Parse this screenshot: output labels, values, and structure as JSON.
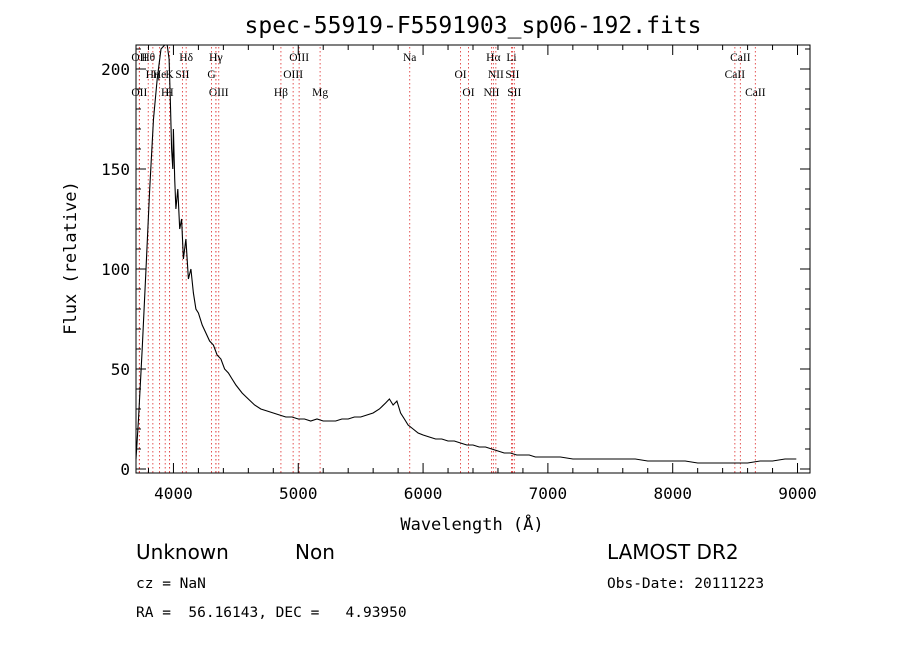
{
  "chart_data": {
    "type": "line",
    "title": "spec-55919-F5591903_sp06-192.fits",
    "xlabel": "Wavelength (Å)",
    "ylabel": "Flux (relative)",
    "xlim": [
      3700,
      9100
    ],
    "ylim": [
      -2,
      212
    ],
    "xticks": [
      4000,
      5000,
      6000,
      7000,
      8000,
      9000
    ],
    "yticks": [
      0,
      50,
      100,
      150,
      200
    ],
    "grid": false,
    "series": [
      {
        "x": [
          3700,
          3720,
          3750,
          3780,
          3810,
          3840,
          3870,
          3900,
          3930,
          3950,
          3965,
          3975,
          3985,
          3995,
          4000,
          4010,
          4020,
          4035,
          4050,
          4065,
          4080,
          4100,
          4120,
          4140,
          4160,
          4180,
          4200,
          4230,
          4260,
          4290,
          4320,
          4350,
          4380,
          4410,
          4440,
          4470,
          4500,
          4550,
          4600,
          4650,
          4700,
          4750,
          4800,
          4850,
          4900,
          4950,
          5000,
          5050,
          5100,
          5150,
          5200,
          5250,
          5300,
          5350,
          5400,
          5450,
          5500,
          5550,
          5600,
          5650,
          5700,
          5730,
          5760,
          5790,
          5820,
          5850,
          5880,
          5920,
          5960,
          6000,
          6050,
          6100,
          6150,
          6200,
          6250,
          6300,
          6350,
          6400,
          6450,
          6500,
          6550,
          6600,
          6650,
          6700,
          6750,
          6800,
          6850,
          6900,
          6950,
          7000,
          7100,
          7200,
          7300,
          7400,
          7500,
          7600,
          7700,
          7800,
          7900,
          8000,
          8100,
          8200,
          8300,
          8400,
          8500,
          8600,
          8700,
          8800,
          8900,
          8990
        ],
        "y": [
          5,
          25,
          60,
          100,
          140,
          175,
          195,
          210,
          212,
          212,
          205,
          185,
          160,
          150,
          170,
          145,
          130,
          140,
          120,
          125,
          105,
          115,
          95,
          100,
          88,
          80,
          78,
          72,
          68,
          64,
          62,
          57,
          55,
          50,
          48,
          45,
          42,
          38,
          35,
          32,
          30,
          29,
          28,
          27,
          26,
          26,
          25,
          25,
          24,
          25,
          24,
          24,
          24,
          25,
          25,
          26,
          26,
          27,
          28,
          30,
          33,
          35,
          32,
          34,
          28,
          25,
          22,
          20,
          18,
          17,
          16,
          15,
          15,
          14,
          14,
          13,
          12,
          12,
          11,
          11,
          10,
          9,
          8,
          8,
          7,
          7,
          7,
          6,
          6,
          6,
          6,
          5,
          5,
          5,
          5,
          5,
          5,
          4,
          4,
          4,
          4,
          3,
          3,
          3,
          3,
          3,
          4,
          4,
          5,
          5
        ]
      }
    ],
    "spectral_lines": [
      {
        "label": "Hθ",
        "x": 3798
      },
      {
        "label": "Hη",
        "x": 3835
      },
      {
        "label": "OII",
        "x": 3727
      },
      {
        "label": "OII",
        "x": 3727
      },
      {
        "label": "He",
        "x": 3889
      },
      {
        "label": "H",
        "x": 3934
      },
      {
        "label": "Hγ",
        "x": 4340
      },
      {
        "label": "K",
        "x": 3969
      },
      {
        "label": "H",
        "x": 3969
      },
      {
        "label": "Hδ",
        "x": 4102
      },
      {
        "label": "SII",
        "x": 4072
      },
      {
        "label": "OIII",
        "x": 4363
      },
      {
        "label": "Hγ",
        "x": 4340
      },
      {
        "label": "G",
        "x": 4305
      },
      {
        "label": "Hβ",
        "x": 4861
      },
      {
        "label": "OIII",
        "x": 5007
      },
      {
        "label": "OIII",
        "x": 4959
      },
      {
        "label": "Mg",
        "x": 5175
      },
      {
        "label": "Na",
        "x": 5893
      },
      {
        "label": "OI",
        "x": 6300
      },
      {
        "label": "OI",
        "x": 6364
      },
      {
        "label": "Hα",
        "x": 6563
      },
      {
        "label": "SII",
        "x": 6716
      },
      {
        "label": "NII",
        "x": 6548
      },
      {
        "label": "Li",
        "x": 6708
      },
      {
        "label": "NII",
        "x": 6583
      },
      {
        "label": "SII",
        "x": 6731
      },
      {
        "label": "CaII",
        "x": 8542
      },
      {
        "label": "CaII",
        "x": 8498
      },
      {
        "label": "CaII",
        "x": 8662
      }
    ]
  },
  "info": {
    "class": "Unknown",
    "subclass": "Non",
    "survey": "LAMOST DR2",
    "cz": "cz = NaN",
    "obs_date": "Obs-Date: 20111223",
    "coords": "RA =  56.16143, DEC =   4.93950"
  }
}
